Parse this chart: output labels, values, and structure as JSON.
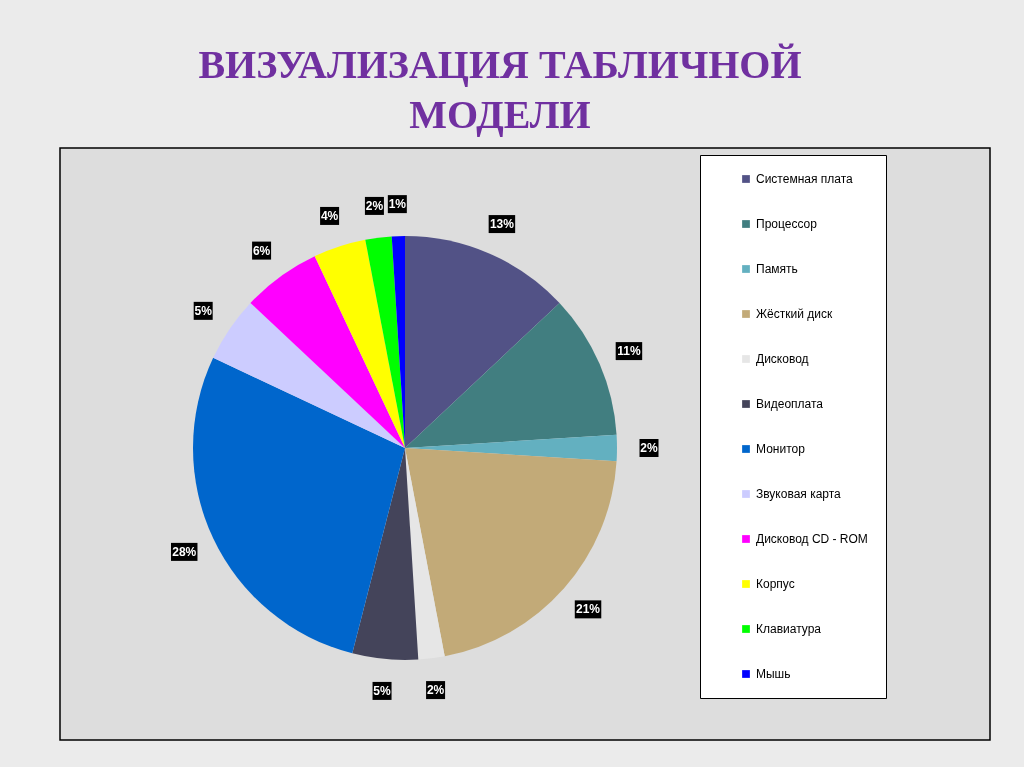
{
  "chart_data": {
    "type": "pie",
    "title": "ВИЗУАЛИЗАЦИЯ ТАБЛИЧНОЙ МОДЕЛИ",
    "categories": [
      "Системная плата",
      "Процессор",
      "Память",
      "Жёсткий диск",
      "Дисковод",
      "Видеоплата",
      "Монитор",
      "Звуковая карта",
      "Дисковод CD - ROM",
      "Корпус",
      "Клавиатура",
      "Мышь"
    ],
    "values": [
      13,
      11,
      2,
      21,
      2,
      5,
      28,
      5,
      6,
      4,
      2,
      1
    ],
    "colors": [
      "#525286",
      "#417e80",
      "#63b0c0",
      "#c2aa78",
      "#e6e6e6",
      "#44445a",
      "#0066cc",
      "#ccccff",
      "#ff00ff",
      "#ffff00",
      "#00ff00",
      "#0000ff"
    ],
    "value_labels": [
      "13%",
      "11%",
      "2%",
      "21%",
      "2%",
      "5%",
      "28%",
      "5%",
      "6%",
      "4%",
      "2%",
      "1%"
    ],
    "legend": "right"
  }
}
